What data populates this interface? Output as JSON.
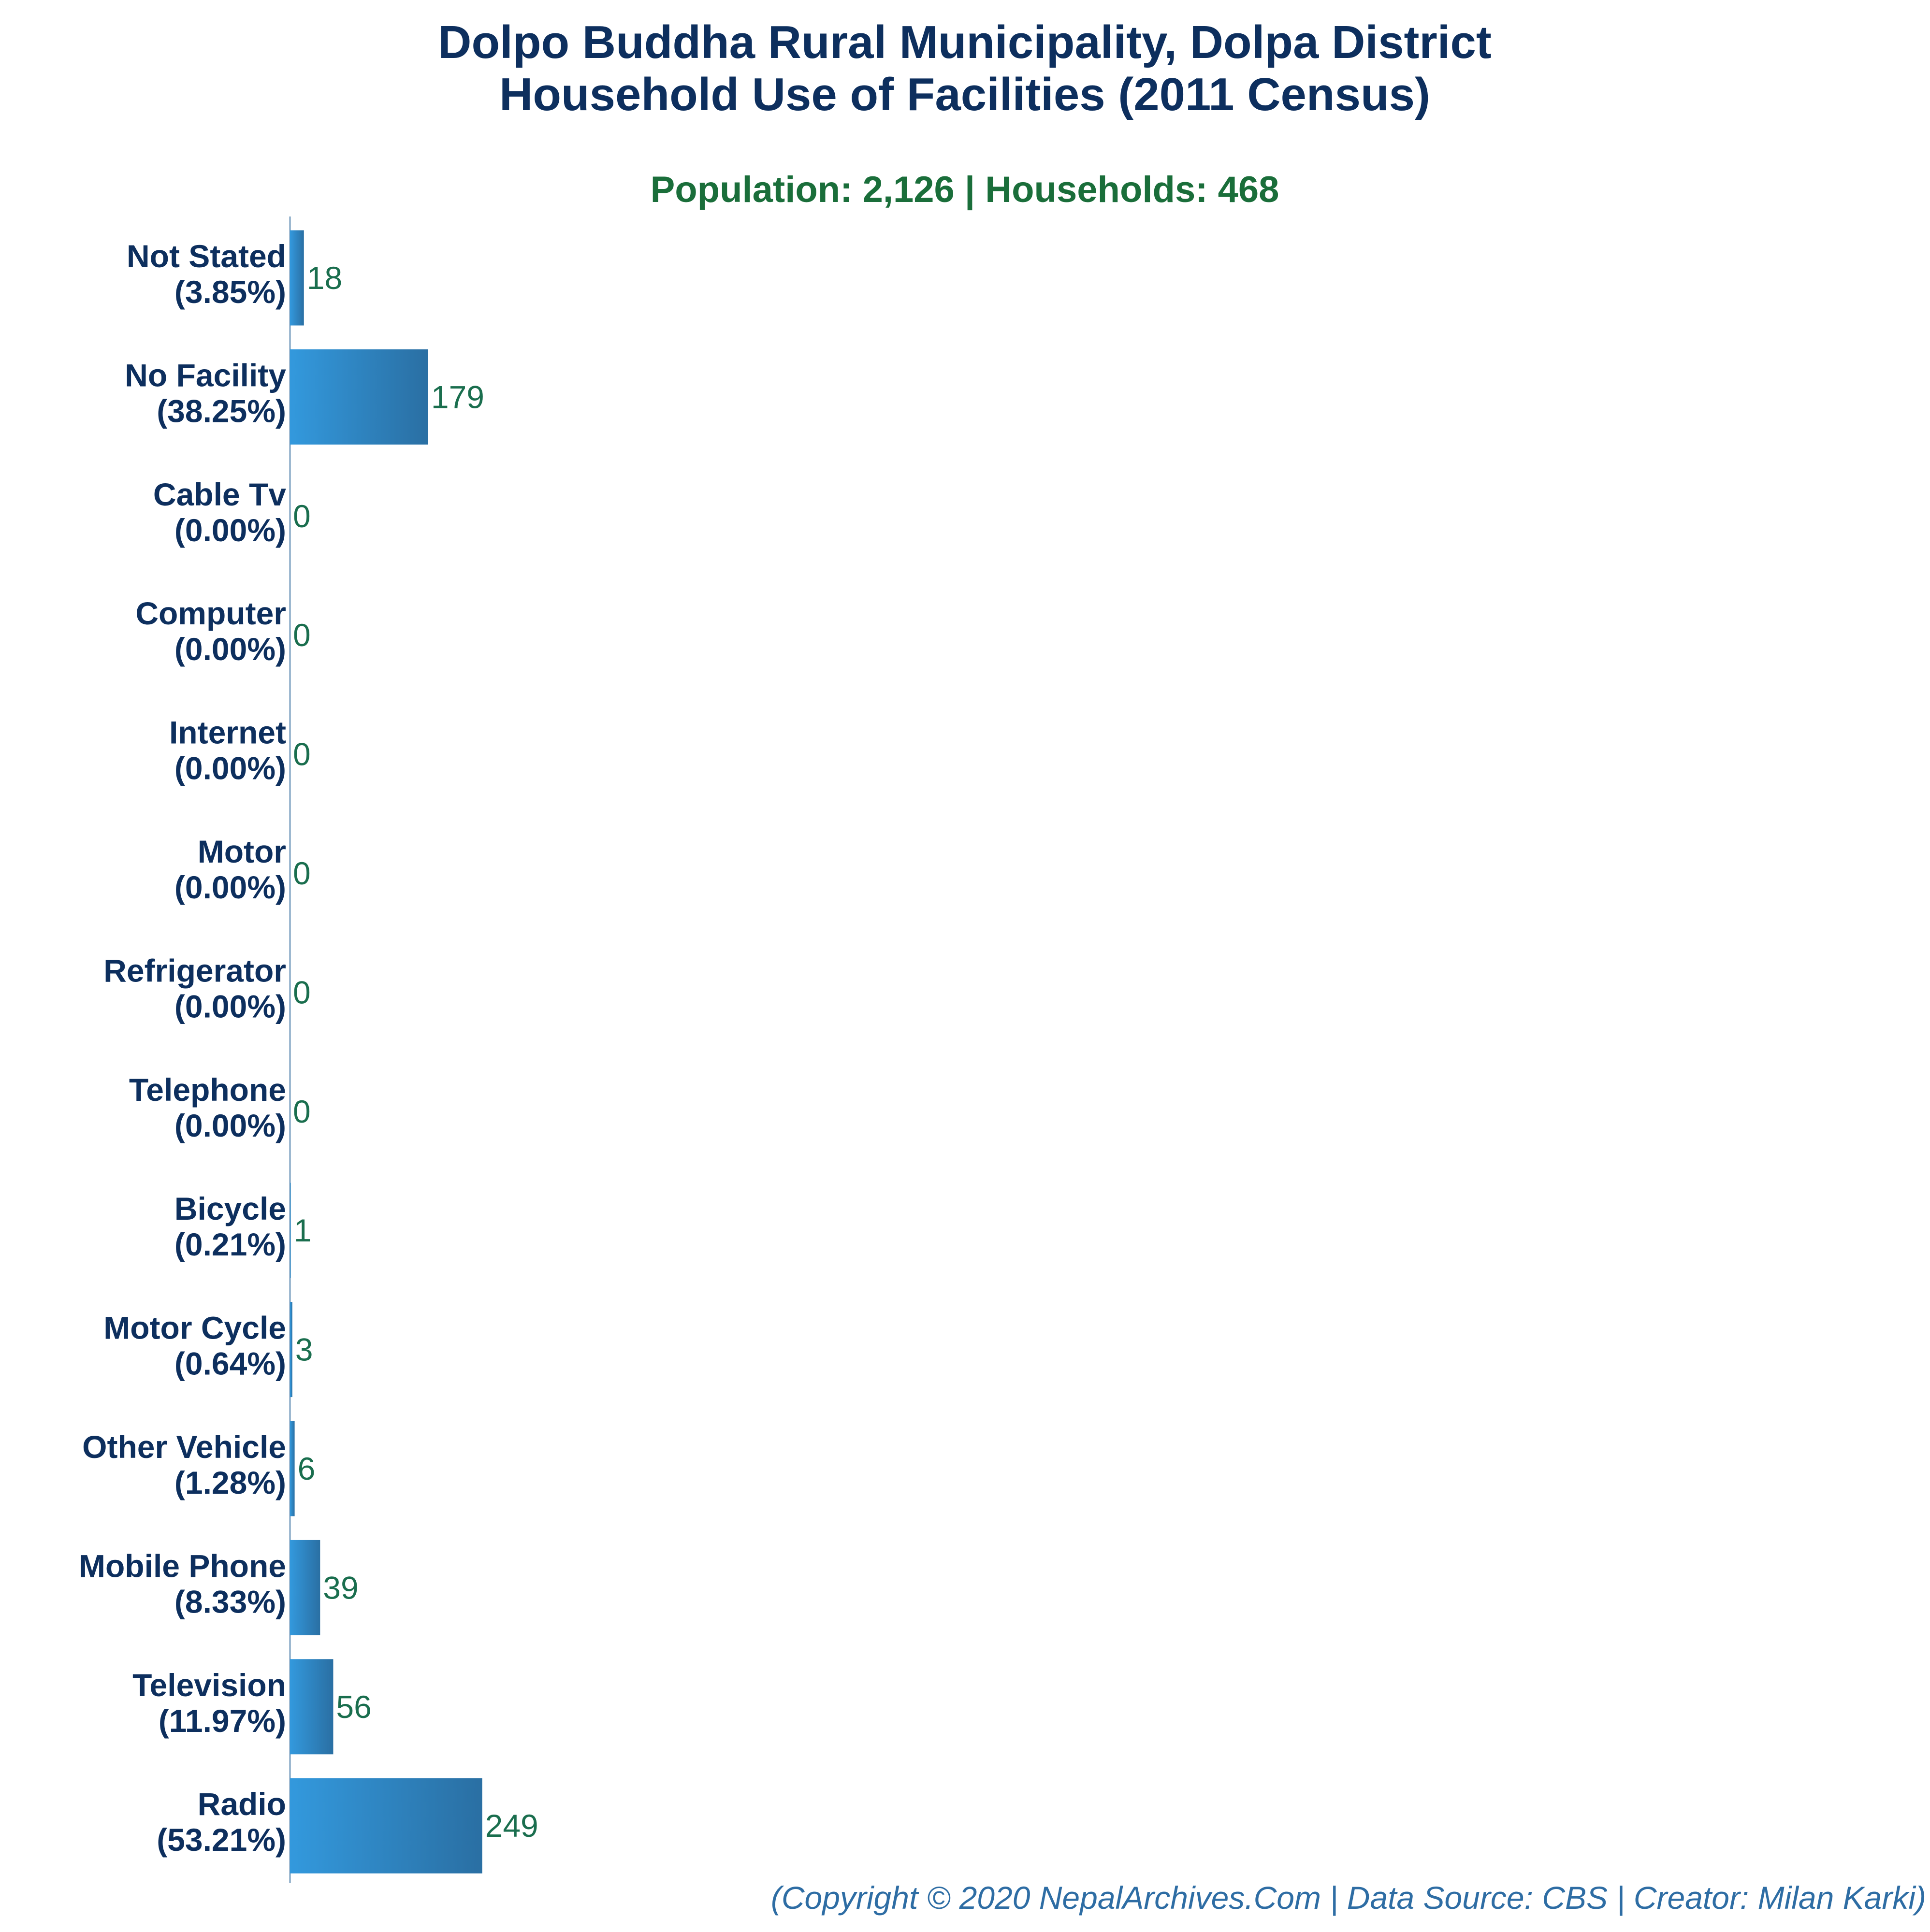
{
  "colors": {
    "title": "#0d2f5e",
    "subtitle": "#1a6e3a",
    "category_label": "#0d2f5e",
    "value_label": "#1a6e4e",
    "footer": "#2e6da4",
    "bar_gradient_start": "#3399dd",
    "bar_gradient_end": "#2a6fa3",
    "axis": "#7a9fbf"
  },
  "chart_data": {
    "type": "bar",
    "orientation": "horizontal",
    "title_lines": [
      "Dolpo Buddha Rural Municipality, Dolpa District",
      "Household Use of Facilities (2011 Census)"
    ],
    "subtitle": "Population: 2,126 | Households: 468",
    "footer": "(Copyright © 2020 NepalArchives.Com | Data Source: CBS | Creator: Milan Karki)",
    "categories": [
      "Not Stated",
      "No Facility",
      "Cable Tv",
      "Computer",
      "Internet",
      "Motor",
      "Refrigerator",
      "Telephone",
      "Bicycle",
      "Motor Cycle",
      "Other Vehicle",
      "Mobile Phone",
      "Television",
      "Radio"
    ],
    "percent_labels": [
      "(3.85%)",
      "(38.25%)",
      "(0.00%)",
      "(0.00%)",
      "(0.00%)",
      "(0.00%)",
      "(0.00%)",
      "(0.00%)",
      "(0.21%)",
      "(0.64%)",
      "(1.28%)",
      "(8.33%)",
      "(11.97%)",
      "(53.21%)"
    ],
    "values": [
      18,
      179,
      0,
      0,
      0,
      0,
      0,
      0,
      1,
      3,
      6,
      39,
      56,
      249
    ],
    "xlim": [
      0,
      850
    ],
    "grid": false,
    "legend": "none"
  }
}
